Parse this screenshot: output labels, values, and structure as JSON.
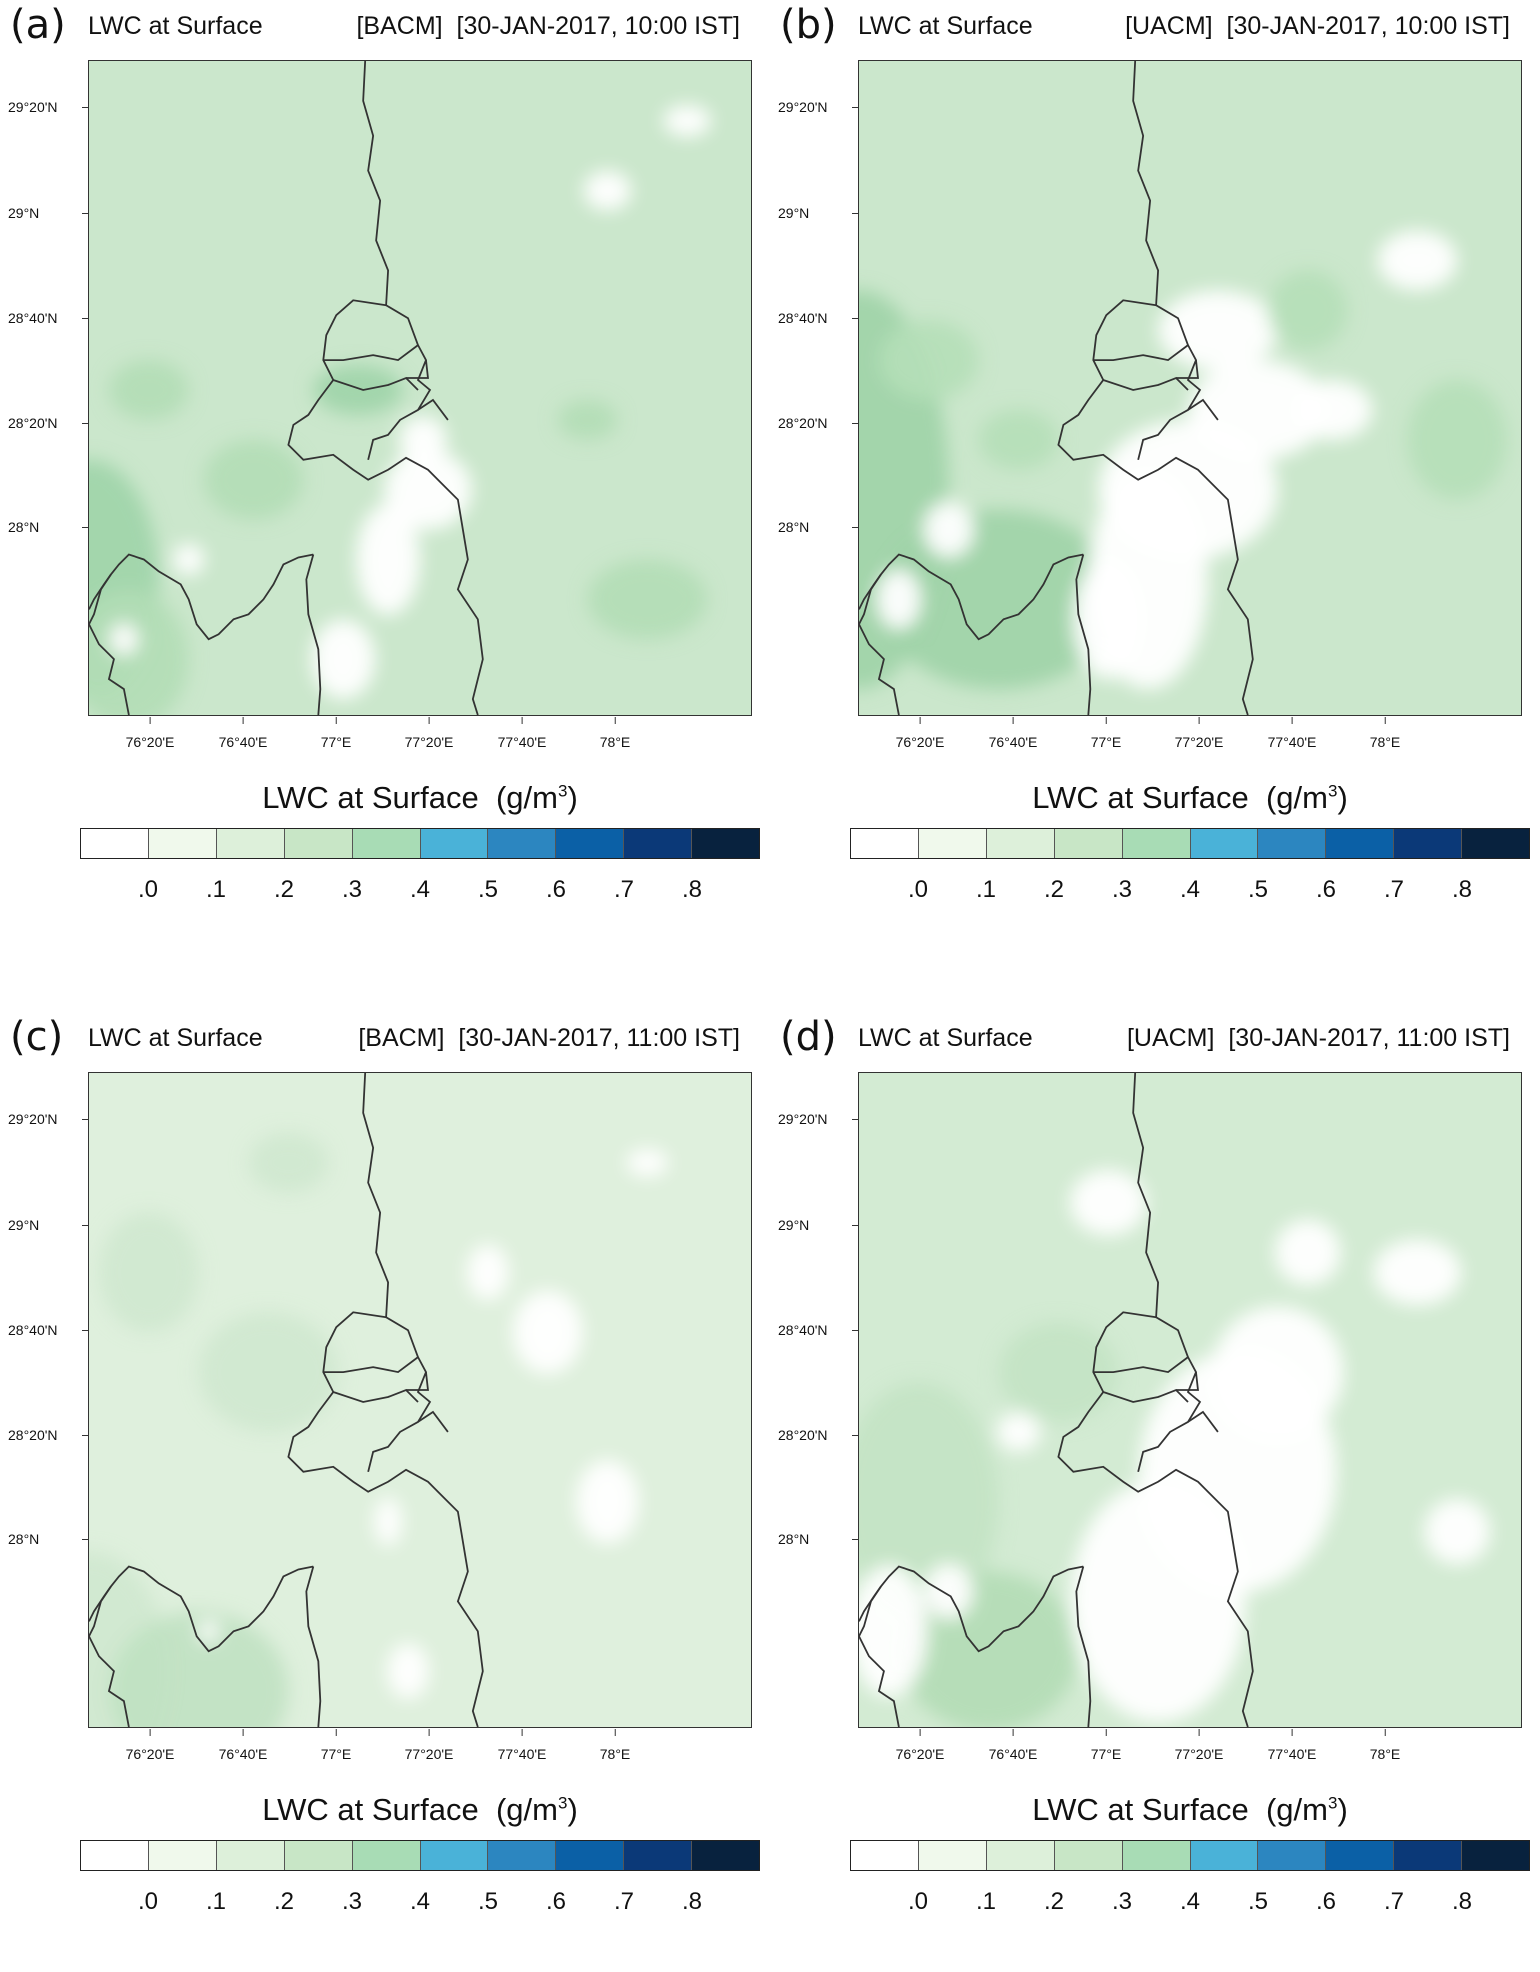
{
  "panels": [
    {
      "id": "a",
      "label": "(a)",
      "variable": "LWC at Surface",
      "scheme": "[BACM]",
      "time": "[30-JAN-2017, 10:00 IST]",
      "base": "#cbe7cc",
      "mid": "#b2ddb6",
      "high": "#9fd4a8",
      "white_core": 0.8
    },
    {
      "id": "b",
      "label": "(b)",
      "variable": "LWC at Surface",
      "scheme": "[UACM]",
      "time": "[30-JAN-2017, 10:00 IST]",
      "base": "#cbe7cc",
      "mid": "#b5dfb8",
      "high": "#9ed3a7",
      "white_core": 1.0
    },
    {
      "id": "c",
      "label": "(c)",
      "variable": "LWC at Surface",
      "scheme": "[BACM]",
      "time": "[30-JAN-2017, 11:00 IST]",
      "base": "#dff0dd",
      "mid": "#cfe8cf",
      "high": "#c0e1c2",
      "white_core": 0.35
    },
    {
      "id": "d",
      "label": "(d)",
      "variable": "LWC at Surface",
      "scheme": "[UACM]",
      "time": "[30-JAN-2017, 11:00 IST]",
      "base": "#d3ebd3",
      "mid": "#c3e3c4",
      "high": "#b2dbb5",
      "white_core": 1.1
    }
  ],
  "axes": {
    "lat_labels": [
      "29°20'N",
      "29°N",
      "28°40'N",
      "28°20'N",
      "28°N"
    ],
    "lon_labels": [
      "76°20'E",
      "76°40'E",
      "77°E",
      "77°20'E",
      "77°40'E",
      "78°E"
    ]
  },
  "colorbar": {
    "title": "LWC at Surface",
    "unit_prefix": "(g/m",
    "unit_exp": "3",
    "unit_suffix": ")",
    "tick_labels": [
      ".0",
      ".1",
      ".2",
      ".3",
      ".4",
      ".5",
      ".6",
      ".7",
      ".8"
    ],
    "colors": [
      "#ffffff",
      "#f0f9ec",
      "#ddf0da",
      "#c8e6c6",
      "#a8dcb5",
      "#4ab2d8",
      "#2c86c0",
      "#0b60a6",
      "#0b3978",
      "#08223e"
    ]
  }
}
